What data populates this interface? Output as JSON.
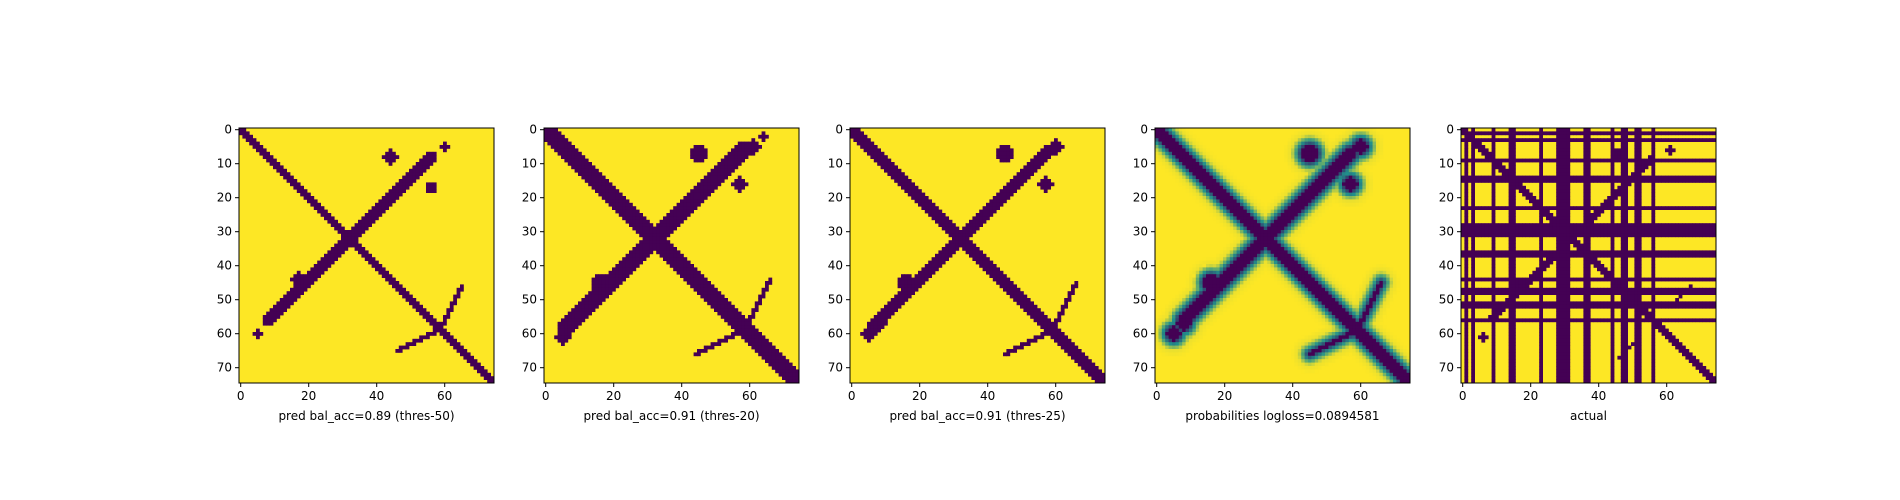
{
  "figure": {
    "background": "#ffffff"
  },
  "colors": {
    "low": "#440154",
    "mid": "#21918c",
    "high": "#fde725",
    "colormap": "viridis"
  },
  "chart_data": [
    {
      "type": "heatmap",
      "title": "",
      "xlabel": "pred bal_acc=0.89 (thres-50)",
      "ylabel": "",
      "size": 75,
      "xlim": [
        0,
        75
      ],
      "ylim": [
        75,
        0
      ],
      "xticks": [
        0,
        20,
        40,
        60
      ],
      "yticks": [
        0,
        10,
        20,
        30,
        40,
        50,
        60,
        70
      ],
      "binary": true,
      "structures": {
        "main_diagonal_halfwidth": 1.2,
        "anti_diagonal": {
          "center": [
            32,
            32
          ],
          "halfwidth": 1.6,
          "from": 9,
          "to": 56
        },
        "blobs": [
          [
            44,
            8,
            2.2
          ],
          [
            56,
            17,
            1.6
          ],
          [
            17,
            44,
            2.2
          ],
          [
            8,
            56,
            1.6
          ],
          [
            5,
            60,
            1.4
          ],
          [
            60,
            5,
            1.4
          ]
        ],
        "hairpins": [
          [
            63,
            50,
            64,
            48
          ],
          [
            50,
            63,
            48,
            64
          ]
        ]
      }
    },
    {
      "type": "heatmap",
      "title": "",
      "xlabel": "pred bal_acc=0.91 (thres-20)",
      "ylabel": "",
      "size": 75,
      "xlim": [
        0,
        75
      ],
      "ylim": [
        75,
        0
      ],
      "xticks": [
        0,
        20,
        40,
        60
      ],
      "yticks": [
        0,
        10,
        20,
        30,
        40,
        50,
        60,
        70
      ],
      "binary": true,
      "structures": {
        "main_diagonal_halfwidth": 2.4,
        "anti_diagonal": {
          "center": [
            32,
            32
          ],
          "halfwidth": 2.4,
          "from": 6,
          "to": 58
        },
        "blobs": [
          [
            45,
            7,
            2.8
          ],
          [
            57,
            16,
            2.2
          ],
          [
            16,
            45,
            2.6
          ],
          [
            8,
            57,
            2.2
          ],
          [
            5,
            61,
            2.2
          ],
          [
            61,
            5,
            2.2
          ],
          [
            64,
            2,
            1.2
          ]
        ],
        "hairpins": [
          [
            64,
            48,
            65,
            46
          ],
          [
            48,
            64,
            46,
            65
          ]
        ]
      }
    },
    {
      "type": "heatmap",
      "title": "",
      "xlabel": "pred bal_acc=0.91 (thres-25)",
      "ylabel": "",
      "size": 75,
      "xlim": [
        0,
        75
      ],
      "ylim": [
        75,
        0
      ],
      "xticks": [
        0,
        20,
        40,
        60
      ],
      "yticks": [
        0,
        10,
        20,
        30,
        40,
        50,
        60,
        70
      ],
      "binary": true,
      "structures": {
        "main_diagonal_halfwidth": 2.0,
        "anti_diagonal": {
          "center": [
            32,
            32
          ],
          "halfwidth": 2.1,
          "from": 7,
          "to": 57
        },
        "blobs": [
          [
            45,
            7,
            2.6
          ],
          [
            57,
            16,
            2.0
          ],
          [
            16,
            45,
            2.4
          ],
          [
            8,
            57,
            2.0
          ],
          [
            5,
            60,
            2.0
          ],
          [
            60,
            5,
            2.0
          ]
        ],
        "hairpins": [
          [
            64,
            49,
            65,
            47
          ],
          [
            49,
            64,
            47,
            65
          ]
        ]
      }
    },
    {
      "type": "heatmap",
      "title": "",
      "xlabel": "probabilities logloss=0.0894581",
      "ylabel": "",
      "size": 75,
      "xlim": [
        0,
        75
      ],
      "ylim": [
        75,
        0
      ],
      "xticks": [
        0,
        20,
        40,
        60
      ],
      "yticks": [
        0,
        10,
        20,
        30,
        40,
        50,
        60,
        70
      ],
      "binary": false,
      "value_range": [
        0,
        1
      ],
      "structures": {
        "main_diagonal_halfwidth": 1.6,
        "anti_diagonal": {
          "center": [
            32,
            32
          ],
          "halfwidth": 1.8,
          "from": 8,
          "to": 57
        },
        "blobs": [
          [
            45,
            7,
            2.6
          ],
          [
            57,
            16,
            2.0
          ],
          [
            16,
            45,
            2.4
          ],
          [
            8,
            57,
            2.0
          ],
          [
            5,
            60,
            2.0
          ],
          [
            60,
            5,
            2.0
          ]
        ],
        "hairpins": [
          [
            64,
            49,
            65,
            47
          ],
          [
            49,
            64,
            47,
            65
          ]
        ]
      }
    },
    {
      "type": "heatmap",
      "title": "",
      "xlabel": "actual",
      "ylabel": "",
      "size": 75,
      "xlim": [
        0,
        75
      ],
      "ylim": [
        75,
        0
      ],
      "xticks": [
        0,
        20,
        40,
        60
      ],
      "yticks": [
        0,
        10,
        20,
        30,
        40,
        50,
        60,
        70
      ],
      "binary": true,
      "dark_lines": [
        1,
        3,
        9,
        14,
        15,
        23,
        28,
        29,
        30,
        31,
        36,
        37,
        44,
        47,
        48,
        51,
        52,
        56
      ],
      "structures": {
        "main_diagonal_halfwidth": 0.8,
        "anti_diagonal": {
          "center": [
            32,
            32
          ],
          "halfwidth": 1.0,
          "from": 9,
          "to": 55
        },
        "blobs": [
          [
            45,
            7,
            1.6
          ],
          [
            16,
            45,
            1.4
          ],
          [
            6,
            61,
            1.2
          ],
          [
            61,
            6,
            1.2
          ]
        ],
        "hairpins": [
          [
            65,
            48,
            66,
            47
          ],
          [
            48,
            65,
            47,
            66
          ]
        ]
      }
    }
  ]
}
